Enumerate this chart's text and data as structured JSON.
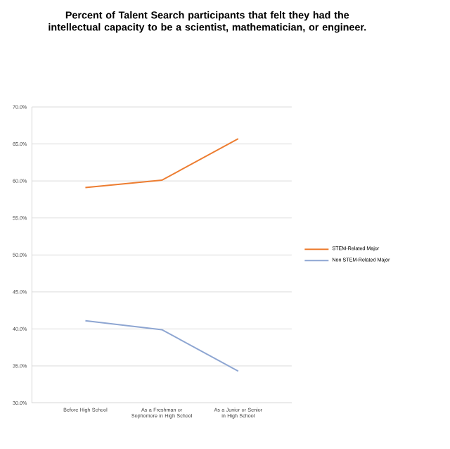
{
  "chart_data": {
    "type": "line",
    "title": "Percent of Talent Search participants that felt they had the intellectual capacity to be a scientist, mathematician, or engineer.",
    "categories": [
      "Before High School",
      "As a Freshman or Sophomore in High School",
      "As a Junior or Senior in High School"
    ],
    "series": [
      {
        "name": "STEM-Related Major",
        "color": "#ed7d31",
        "values": [
          59.1,
          60.1,
          65.7
        ]
      },
      {
        "name": "Non STEM-Related Major",
        "color": "#8ea6d2",
        "values": [
          41.1,
          39.9,
          34.3
        ]
      }
    ],
    "ylim": [
      30,
      70
    ],
    "yticks": [
      {
        "value": 30,
        "label": "30.0%"
      },
      {
        "value": 35,
        "label": "35.0%"
      },
      {
        "value": 40,
        "label": "40.0%"
      },
      {
        "value": 45,
        "label": "45.0%"
      },
      {
        "value": 50,
        "label": "50.0%"
      },
      {
        "value": 55,
        "label": "55.0%"
      },
      {
        "value": 60,
        "label": "60.0%"
      },
      {
        "value": 65,
        "label": "65.0%"
      },
      {
        "value": 70,
        "label": "70.0%"
      }
    ],
    "grid": "y",
    "legend": "right",
    "marker": "none",
    "line_style": "solid"
  }
}
